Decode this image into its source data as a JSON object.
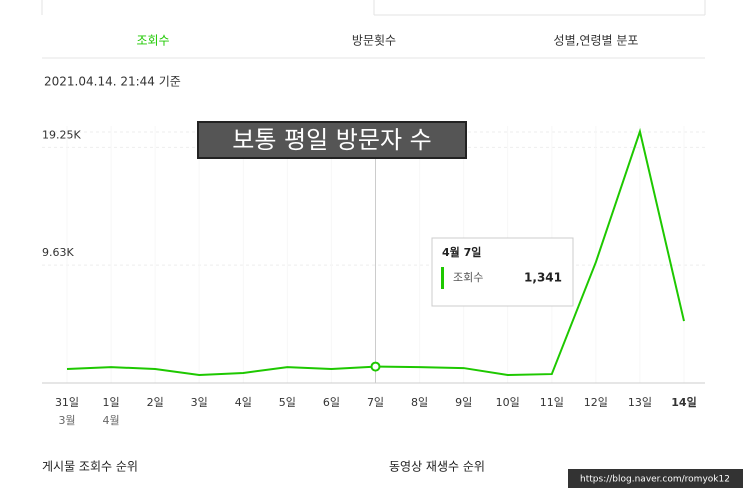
{
  "tabs": [
    "조회수",
    "방문횟수",
    "성별,연령별 분포"
  ],
  "timestamp": "2021.04.14. 21:44 기준",
  "chart_data": {
    "type": "line",
    "annotation": "보통 평일 방문자 수",
    "categories": [
      "31일",
      "1일",
      "2일",
      "3일",
      "4일",
      "5일",
      "6일",
      "7일",
      "8일",
      "9일",
      "10일",
      "11일",
      "12일",
      "13일",
      "14일"
    ],
    "month_labels": [
      "3월",
      "4월",
      null,
      null,
      null,
      null,
      null,
      null,
      null,
      null,
      null,
      null,
      null,
      null,
      null
    ],
    "series": [
      {
        "name": "조회수",
        "color": "#1ec800",
        "values": [
          1140,
          1300,
          1140,
          650,
          820,
          1300,
          1140,
          1341,
          1300,
          1220,
          650,
          730,
          9870,
          20550,
          5060
        ]
      }
    ],
    "ylim": [
      0,
      21000
    ],
    "yticks": [
      {
        "value": 9630,
        "label": "9.63K"
      },
      {
        "value": 19250,
        "label": "19.25K"
      }
    ],
    "grid": true,
    "tooltip": {
      "title": "4월 7일",
      "value_label": "1,341"
    }
  },
  "sections": [
    "게시물 조회수 순위",
    "동영상 재생수 순위"
  ],
  "watermark": "https://blog.naver.com/romyok12"
}
